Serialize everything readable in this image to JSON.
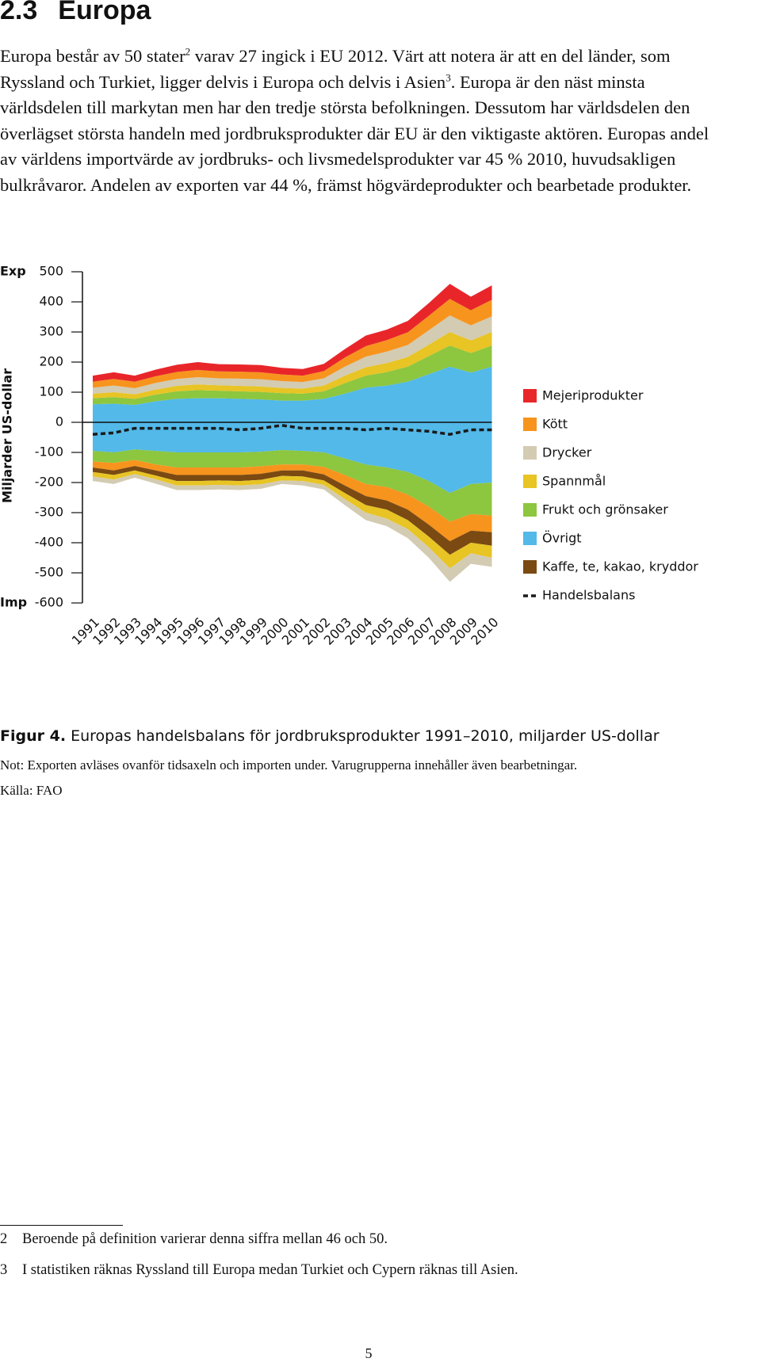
{
  "heading": {
    "number": "2.3",
    "title": "Europa"
  },
  "paragraph": [
    "Europa består av 50 stater",
    "2",
    " varav 27 ingick i EU 2012. Värt att notera är att en del länder, som Ryssland och Turkiet, ligger delvis i Europa och delvis i Asien",
    "3",
    ". Europa är den näst minsta världsdelen till markytan men har den tredje största befolkningen. Dessutom har världsdelen den överlägset största handeln med jordbruksprodukter där EU är den viktigaste aktören. Europas andel av världens importvärde av jordbruks- och livsmedelsprodukter var 45 % 2010, huvudsakligen bulkråvaror. Andelen av exporten var 44 %, främst högvärdeprodukter och bearbetade produkter."
  ],
  "chart_data": {
    "type": "area",
    "y_label": "Miljarder US-dollar",
    "export_label": "Exp",
    "import_label": "Imp",
    "categories": [
      "1991",
      "1992",
      "1993",
      "1994",
      "1995",
      "1996",
      "1997",
      "1998",
      "1999",
      "2000",
      "2001",
      "2002",
      "2003",
      "2004",
      "2005",
      "2006",
      "2007",
      "2008",
      "2009",
      "2010"
    ],
    "ylim": [
      -600,
      500
    ],
    "yticks": [
      -600,
      -500,
      -400,
      -300,
      -200,
      -100,
      0,
      100,
      200,
      300,
      400,
      500
    ],
    "series": [
      {
        "name": "Mejeriprodukter",
        "color": "#e8262a",
        "export": [
          20,
          22,
          20,
          22,
          24,
          26,
          24,
          24,
          24,
          22,
          22,
          24,
          28,
          35,
          35,
          38,
          42,
          50,
          45,
          48
        ]
      },
      {
        "name": "Kött",
        "color": "#f7941d",
        "export": [
          20,
          22,
          22,
          22,
          23,
          24,
          23,
          23,
          23,
          22,
          21,
          24,
          30,
          35,
          38,
          42,
          48,
          55,
          50,
          55
        ],
        "import": [
          -20,
          -25,
          -20,
          -20,
          -25,
          -25,
          -25,
          -25,
          -25,
          -20,
          -20,
          -25,
          -35,
          -40,
          -45,
          -50,
          -60,
          -65,
          -55,
          -55
        ]
      },
      {
        "name": "Drycker",
        "color": "#d3cbb2",
        "export": [
          20,
          22,
          20,
          22,
          23,
          24,
          23,
          24,
          24,
          23,
          22,
          24,
          30,
          35,
          38,
          40,
          48,
          55,
          50,
          52
        ],
        "import": [
          -15,
          -15,
          -12,
          -15,
          -15,
          -15,
          -15,
          -15,
          -15,
          -12,
          -15,
          -15,
          -20,
          -25,
          -25,
          -30,
          -35,
          -45,
          -35,
          -30
        ]
      },
      {
        "name": "Spannmål",
        "color": "#e8c424",
        "export": [
          15,
          16,
          15,
          17,
          18,
          19,
          18,
          18,
          18,
          17,
          17,
          19,
          25,
          28,
          30,
          32,
          38,
          45,
          42,
          45
        ],
        "import": [
          -15,
          -15,
          -12,
          -12,
          -15,
          -15,
          -15,
          -15,
          -15,
          -15,
          -15,
          -15,
          -20,
          -25,
          -30,
          -30,
          -35,
          -45,
          -35,
          -40
        ]
      },
      {
        "name": "Frukt och grönsaker",
        "color": "#8dc63f",
        "export": [
          20,
          22,
          20,
          22,
          25,
          27,
          25,
          25,
          25,
          25,
          23,
          25,
          35,
          40,
          45,
          50,
          60,
          70,
          65,
          70
        ],
        "import": [
          -35,
          -35,
          -35,
          -45,
          -50,
          -50,
          -50,
          -50,
          -48,
          -48,
          -45,
          -48,
          -55,
          -65,
          -65,
          -75,
          -85,
          -95,
          -100,
          -110
        ]
      },
      {
        "name": "Övrigt",
        "color": "#52b9e9",
        "export": [
          60,
          62,
          58,
          70,
          78,
          80,
          80,
          78,
          76,
          72,
          72,
          78,
          95,
          115,
          122,
          135,
          160,
          185,
          165,
          185
        ],
        "import": [
          -95,
          -100,
          -90,
          -95,
          -100,
          -100,
          -100,
          -100,
          -98,
          -92,
          -95,
          -100,
          -120,
          -140,
          -150,
          -165,
          -195,
          -235,
          -205,
          -200
        ]
      },
      {
        "name": "Kaffe, te, kakao, kryddor",
        "color": "#7a4a12",
        "import": [
          -15,
          -15,
          -15,
          -17,
          -20,
          -20,
          -18,
          -20,
          -20,
          -18,
          -20,
          -20,
          -25,
          -30,
          -30,
          -35,
          -40,
          -45,
          -40,
          -45
        ]
      }
    ],
    "balance": {
      "name": "Handelsbalans",
      "color": "#1a1a1a",
      "values": [
        -40,
        -35,
        -20,
        -20,
        -20,
        -20,
        -20,
        -25,
        -20,
        -10,
        -20,
        -20,
        -20,
        -25,
        -20,
        -25,
        -30,
        -40,
        -25,
        -25
      ]
    }
  },
  "caption": {
    "label": "Figur 4.",
    "text": " Europas handelsbalans för jordbruksprodukter 1991–2010, miljarder US-dollar"
  },
  "note": "Not: Exporten avläses ovanför tidsaxeln och importen under. Varugrupperna innehåller även bearbetningar.",
  "source": "Källa: FAO",
  "footnotes": [
    {
      "number": "2",
      "text": "Beroende på definition varierar denna siffra mellan 46 och 50."
    },
    {
      "number": "3",
      "text": "I statistiken räknas Ryssland till Europa medan Turkiet och Cypern räknas till Asien."
    }
  ],
  "page_number": "5"
}
